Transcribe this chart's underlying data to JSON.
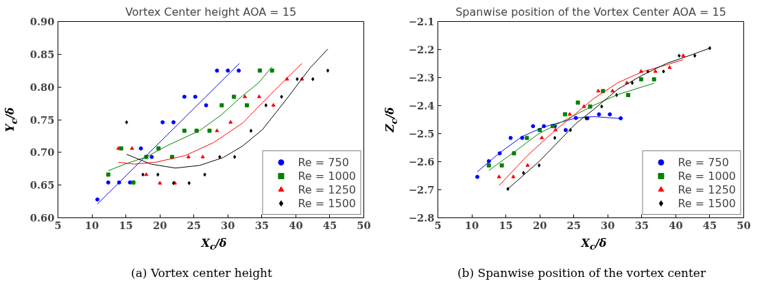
{
  "chart_data": [
    {
      "type": "scatter",
      "title": "Vortex Center height AOA = 15",
      "xlabel": "X$_{c}$/δ",
      "ylabel": "Y$_{c}$/δ",
      "annotations": [
        "(a) Vortex center height"
      ],
      "xlim": [
        5,
        50
      ],
      "xticks": [
        5,
        10,
        15,
        20,
        25,
        30,
        35,
        40,
        45,
        50
      ],
      "ylim": [
        0.6,
        0.9
      ],
      "yticks": [
        {
          "value": 0.6,
          "label": "0.60"
        },
        0.65,
        {
          "value": 0.7,
          "label": "0.70"
        },
        0.75,
        {
          "value": 0.8,
          "label": "0.80"
        },
        0.85,
        {
          "value": 0.9,
          "label": "0.90"
        }
      ],
      "legend": "bottom right",
      "grid": false,
      "series": [
        {
          "name": "Re = 750",
          "color": "#0000ff",
          "marker": "circle",
          "x": [
            10.8,
            12.4,
            14.0,
            15.6,
            17.2,
            18.8,
            20.4,
            22.0,
            23.6,
            25.2,
            26.8,
            28.4,
            30.0,
            31.6
          ],
          "values": [
            0.628,
            0.654,
            0.654,
            0.654,
            0.706,
            0.693,
            0.746,
            0.746,
            0.785,
            0.785,
            0.772,
            0.825,
            0.825,
            0.825
          ]
        },
        {
          "name": "Re = 1000",
          "color": "#008000",
          "marker": "square",
          "x": [
            12.4,
            14.3,
            16.1,
            18.0,
            19.8,
            21.8,
            23.6,
            25.4,
            27.3,
            29.1,
            30.9,
            32.8,
            34.7,
            36.5
          ],
          "values": [
            0.666,
            0.706,
            0.654,
            0.693,
            0.706,
            0.693,
            0.733,
            0.733,
            0.733,
            0.772,
            0.785,
            0.772,
            0.825,
            0.825
          ]
        },
        {
          "name": "Re = 1250",
          "color": "#ff0000",
          "marker": "triangle",
          "x": [
            13.9,
            15.9,
            18.0,
            20.0,
            22.2,
            24.2,
            26.3,
            28.4,
            30.4,
            32.5,
            34.6,
            36.7,
            38.7,
            40.9
          ],
          "values": [
            0.706,
            0.706,
            0.666,
            0.653,
            0.653,
            0.693,
            0.693,
            0.733,
            0.746,
            0.785,
            0.785,
            0.772,
            0.812,
            0.812
          ]
        },
        {
          "name": "Re = 1500",
          "color": "#000000",
          "marker": "diamond",
          "x": [
            15.1,
            17.5,
            19.7,
            22.0,
            24.3,
            26.6,
            28.8,
            31.0,
            33.4,
            35.6,
            37.9,
            40.2,
            42.5,
            44.7
          ],
          "values": [
            0.746,
            0.666,
            0.666,
            0.653,
            0.653,
            0.666,
            0.693,
            0.693,
            0.733,
            0.772,
            0.785,
            0.812,
            0.812,
            0.825
          ]
        },
        {
          "type": "line",
          "color": "#0000ff",
          "x": [
            10.8,
            31.7
          ],
          "values": [
            0.621,
            0.836
          ]
        },
        {
          "type": "line",
          "color": "#008000",
          "x": [
            12.4,
            15.1,
            18.0,
            21.0,
            25.8,
            29.0,
            32.2,
            34.5,
            36.5
          ],
          "values": [
            0.672,
            0.683,
            0.693,
            0.71,
            0.733,
            0.757,
            0.787,
            0.806,
            0.831
          ]
        },
        {
          "type": "line",
          "color": "#ff0000",
          "x": [
            13.9,
            16.2,
            19.4,
            23.7,
            27.9,
            32.2,
            33.3,
            36.8,
            40.9
          ],
          "values": [
            0.685,
            0.682,
            0.685,
            0.695,
            0.715,
            0.745,
            0.757,
            0.794,
            0.836
          ]
        },
        {
          "type": "line",
          "color": "#000000",
          "x": [
            15.1,
            18.7,
            22.3,
            25.8,
            29.3,
            32.2,
            35.1,
            38.6,
            42.1,
            44.7
          ],
          "values": [
            0.697,
            0.682,
            0.676,
            0.68,
            0.692,
            0.71,
            0.735,
            0.781,
            0.829,
            0.858
          ]
        }
      ]
    },
    {
      "type": "scatter",
      "title": "Spanwise position of the Vortex Center AOA = 15",
      "xlabel": "X$_{c}$/δ",
      "ylabel": "Z$_{c}$/δ",
      "annotations": [
        "(b) Spanwise position of the vortex center"
      ],
      "xlim": [
        5,
        50
      ],
      "xticks": [
        5,
        10,
        15,
        20,
        25,
        30,
        35,
        40,
        45,
        50
      ],
      "ylim": [
        -2.8,
        -2.1
      ],
      "yticks": [
        {
          "value": -2.8,
          "label": "−2.8"
        },
        {
          "value": -2.7,
          "label": "−2.7"
        },
        {
          "value": -2.6,
          "label": "−2.6"
        },
        {
          "value": -2.5,
          "label": "−2.5"
        },
        {
          "value": -2.4,
          "label": "−2.4"
        },
        {
          "value": -2.3,
          "label": "−2.3"
        },
        {
          "value": -2.2,
          "label": "−2.2"
        },
        {
          "value": -2.1,
          "label": "−2.1"
        }
      ],
      "legend": "bottom right",
      "grid": false,
      "series": [
        {
          "name": "Re = 750",
          "color": "#0000ff",
          "marker": "circle",
          "x": [
            10.8,
            12.5,
            14.1,
            15.7,
            17.4,
            19.0,
            20.6,
            22.2,
            23.8,
            25.3,
            27.0,
            28.7,
            30.3,
            31.9
          ],
          "values": [
            -2.654,
            -2.598,
            -2.57,
            -2.515,
            -2.515,
            -2.473,
            -2.473,
            -2.473,
            -2.487,
            -2.444,
            -2.445,
            -2.431,
            -2.431,
            -2.445
          ]
        },
        {
          "name": "Re = 1000",
          "color": "#008000",
          "marker": "square",
          "x": [
            12.5,
            14.4,
            16.2,
            18.1,
            20.0,
            21.9,
            23.7,
            25.6,
            27.4,
            29.3,
            33.0,
            34.9,
            36.8
          ],
          "values": [
            -2.613,
            -2.613,
            -2.57,
            -2.515,
            -2.487,
            -2.473,
            -2.431,
            -2.389,
            -2.403,
            -2.348,
            -2.362,
            -2.306,
            -2.306
          ]
        },
        {
          "name": "Re = 1250",
          "color": "#ff0000",
          "marker": "triangle",
          "x": [
            14.0,
            16.1,
            18.2,
            20.3,
            22.3,
            24.4,
            26.5,
            28.6,
            30.7,
            32.8,
            34.9,
            37.0,
            39.1,
            41.1
          ],
          "values": [
            -2.654,
            -2.654,
            -2.613,
            -2.515,
            -2.487,
            -2.431,
            -2.403,
            -2.348,
            -2.348,
            -2.319,
            -2.278,
            -2.278,
            -2.264,
            -2.222
          ]
        },
        {
          "name": "Re = 1500",
          "color": "#000000",
          "marker": "diamond",
          "x": [
            15.3,
            17.6,
            19.9,
            22.2,
            24.5,
            26.8,
            29.1,
            31.3,
            33.6,
            35.9,
            38.2,
            40.5,
            42.8,
            45.0
          ],
          "values": [
            -2.697,
            -2.64,
            -2.613,
            -2.515,
            -2.487,
            -2.445,
            -2.403,
            -2.362,
            -2.319,
            -2.278,
            -2.278,
            -2.222,
            -2.222,
            -2.195
          ]
        },
        {
          "type": "line",
          "color": "#0000ff",
          "x": [
            10.8,
            14.1,
            17.4,
            20.6,
            25.3,
            27.9,
            31.9
          ],
          "values": [
            -2.636,
            -2.568,
            -2.51,
            -2.476,
            -2.444,
            -2.439,
            -2.446
          ]
        },
        {
          "type": "line",
          "color": "#008000",
          "x": [
            12.5,
            16.3,
            19.9,
            25.3,
            27.9,
            31.5,
            36.8
          ],
          "values": [
            -2.631,
            -2.564,
            -2.499,
            -2.432,
            -2.399,
            -2.36,
            -2.32
          ]
        },
        {
          "type": "line",
          "color": "#ff0000",
          "x": [
            14.0,
            18.1,
            22.1,
            25.3,
            27.9,
            31.5,
            35.1,
            38.7,
            41.1
          ],
          "values": [
            -2.685,
            -2.58,
            -2.491,
            -2.428,
            -2.375,
            -2.318,
            -2.279,
            -2.254,
            -2.236
          ]
        },
        {
          "type": "line",
          "color": "#000000",
          "x": [
            15.3,
            19.9,
            25.3,
            27.9,
            31.5,
            35.1,
            38.7,
            42.4,
            45.0
          ],
          "values": [
            -2.697,
            -2.599,
            -2.464,
            -2.414,
            -2.341,
            -2.291,
            -2.249,
            -2.218,
            -2.195
          ]
        }
      ]
    }
  ]
}
